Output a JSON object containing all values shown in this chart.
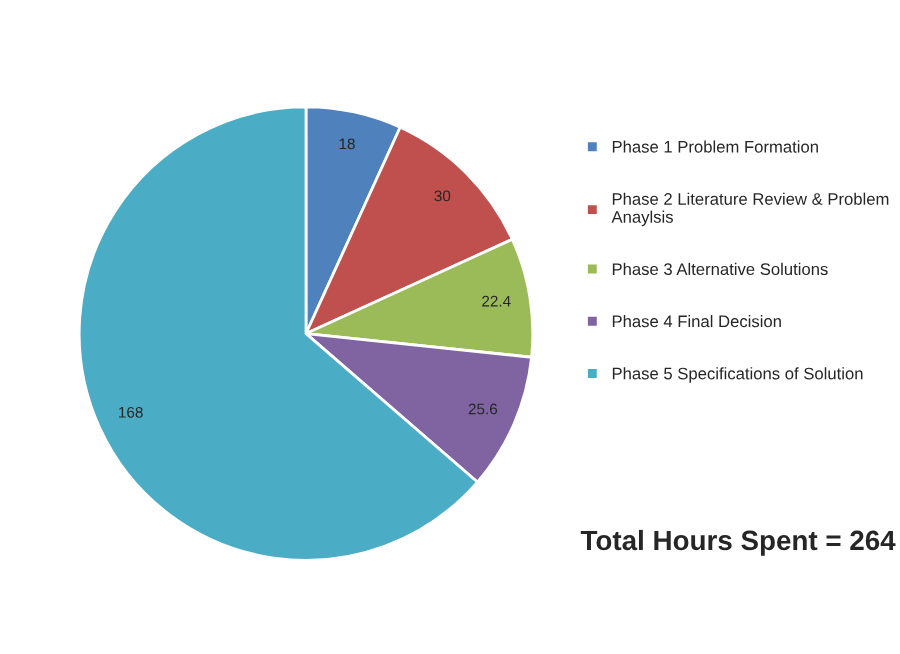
{
  "chart_data": {
    "type": "pie",
    "categories": [
      "Phase 1 Problem Formation",
      "Phase 2 Literature Review & Problem\nAnaylsis",
      "Phase 3 Alternative Solutions",
      "Phase 4 Final Decision",
      "Phase 5 Specifications of Solution"
    ],
    "values": [
      18,
      30,
      22.4,
      25.6,
      168
    ],
    "colors": [
      "#4f81bd",
      "#c0504d",
      "#9bbb59",
      "#8064a2",
      "#4bacc6"
    ],
    "data_labels": true,
    "legend": "right",
    "annotations": [
      "Total Hours Spent = 264"
    ]
  }
}
